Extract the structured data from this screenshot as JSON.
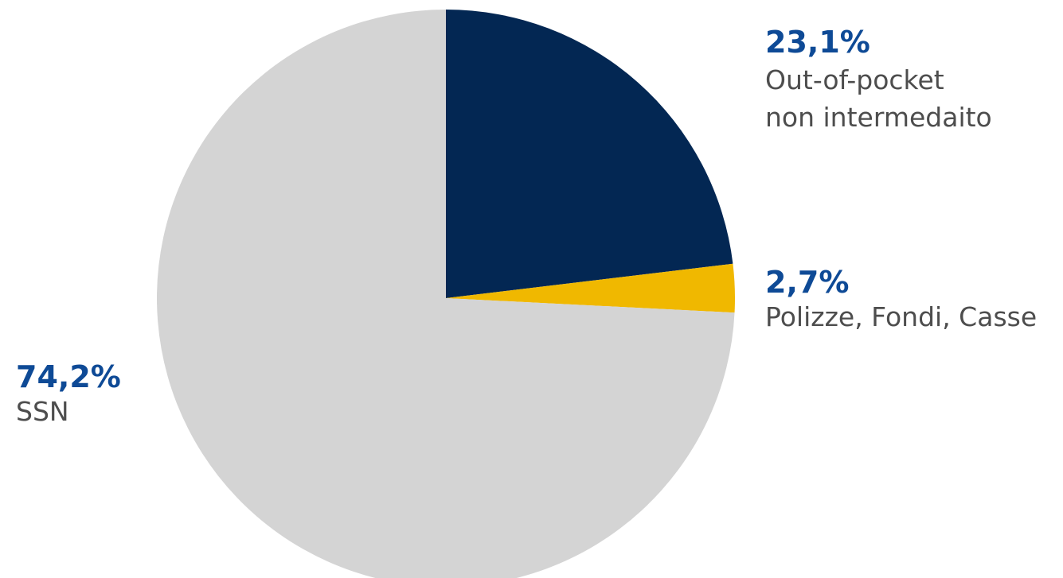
{
  "chart_data": {
    "type": "pie",
    "slices": [
      {
        "value": 23.1,
        "value_label": "23,1%",
        "label_lines": [
          "Out-of-pocket",
          "non intermedaito"
        ],
        "color": "#032753"
      },
      {
        "value": 2.7,
        "value_label": "2,7%",
        "label_lines": [
          "Polizze, Fondi, Casse"
        ],
        "color": "#f0b800"
      },
      {
        "value": 74.2,
        "value_label": "74,2%",
        "label_lines": [
          "SSN"
        ],
        "color": "#d4d4d4"
      }
    ],
    "start_angle": "12 o'clock",
    "direction": "clockwise",
    "legend": "none",
    "value_label_color": "#0e4a96",
    "category_label_color": "#4d4d4d"
  }
}
